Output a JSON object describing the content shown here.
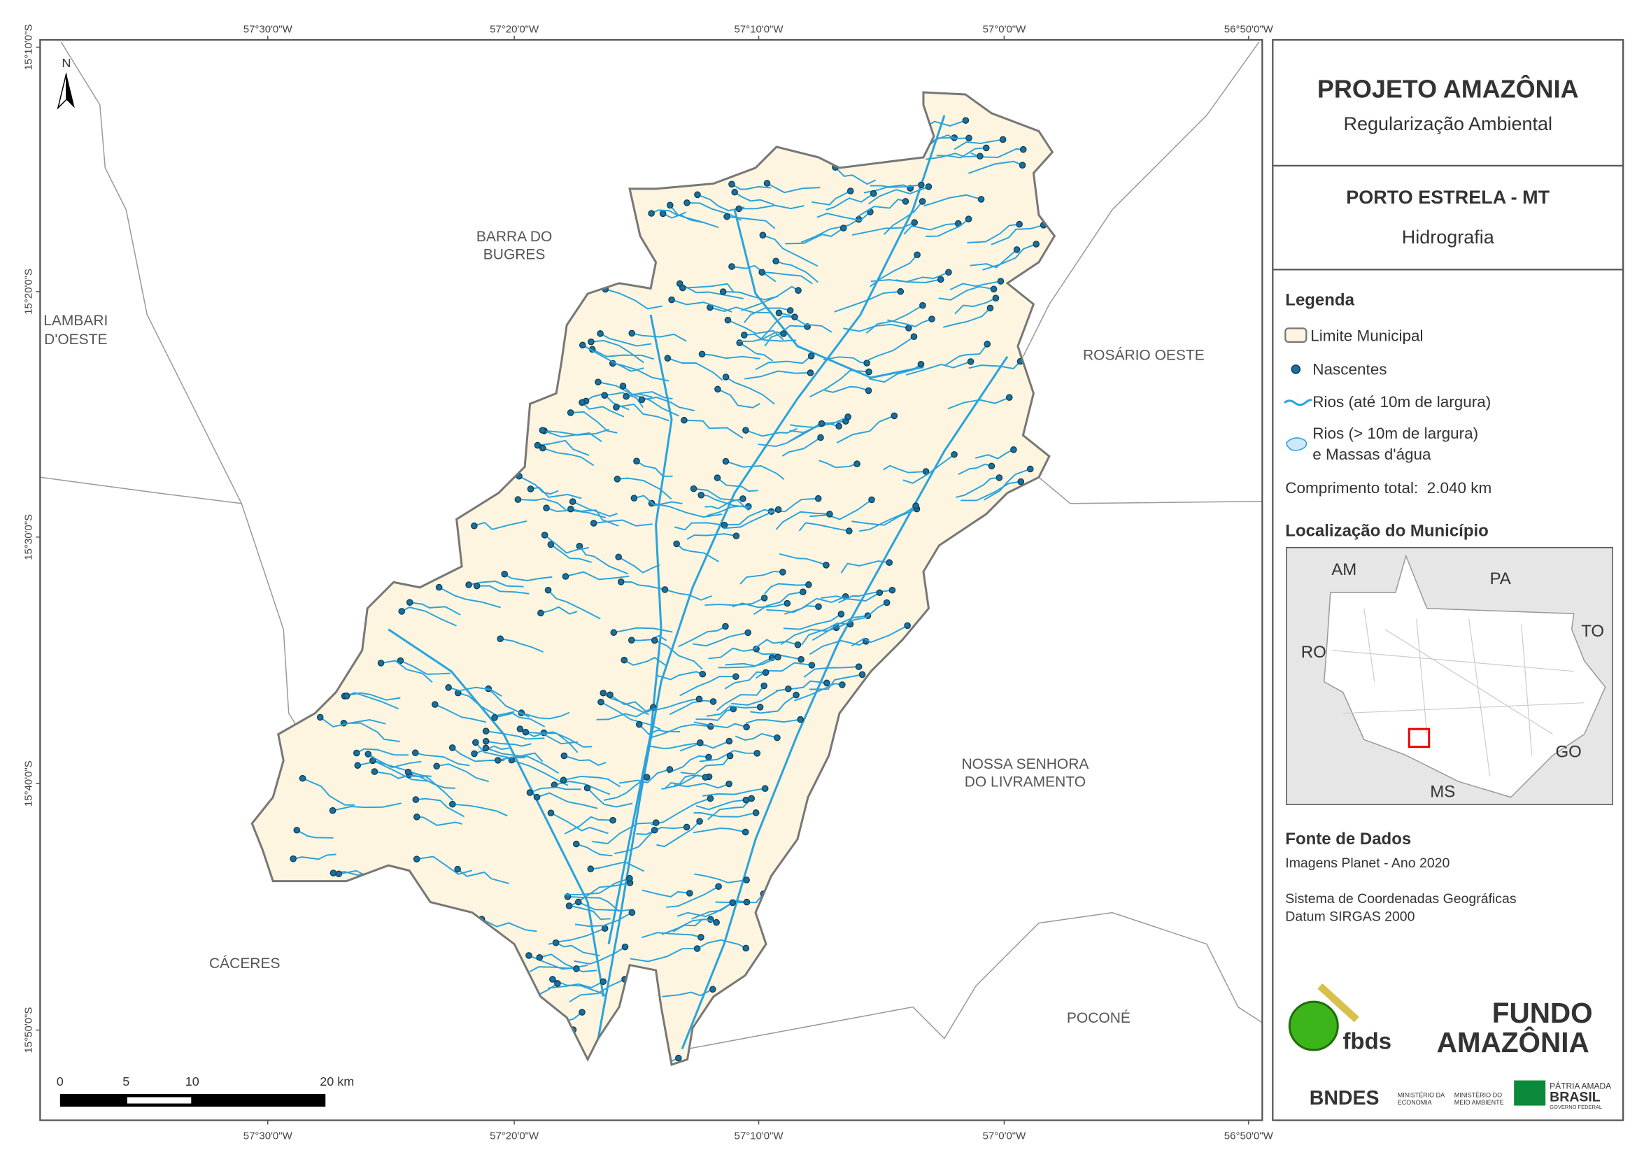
{
  "map_frame": {
    "top_labels": [
      "57°30'0\"W",
      "57°20'0\"W",
      "57°10'0\"W",
      "57°0'0\"W",
      "56°50'0\"W"
    ],
    "bottom_labels": [
      "57°30'0\"W",
      "57°20'0\"W",
      "57°10'0\"W",
      "57°0'0\"W",
      "56°50'0\"W"
    ],
    "left_labels": [
      "15°10'0\"S",
      "15°20'0\"S",
      "15°30'0\"S",
      "15°40'0\"S",
      "15°50'0\"S"
    ]
  },
  "places": [
    [
      "BARRA DO",
      "BUGRES"
    ],
    [
      "LAMBARI",
      "D'OESTE"
    ],
    [
      "ROSÁRIO OESTE"
    ],
    [
      "NOSSA SENHORA",
      "DO LIVRAMENTO"
    ],
    [
      "CÁCERES"
    ],
    [
      "POCONÉ"
    ]
  ],
  "north": "N",
  "scale_bar": [
    "0",
    "5",
    "10",
    "20 km"
  ],
  "header": {
    "title": "PROJETO AMAZÔNIA",
    "subtitle": "Regularização Ambiental"
  },
  "municipality": {
    "name": "PORTO ESTRELA - MT",
    "theme": "Hidrografia"
  },
  "legend": {
    "title": "Legenda",
    "items": [
      "Limite Municipal",
      "Nascentes",
      "Rios (até 10m de largura)",
      "Rios (> 10m de largura)",
      "e Massas d'água"
    ],
    "total": "Comprimento total:  2.040 km"
  },
  "location": {
    "title": "Localização do Município",
    "states": [
      "AM",
      "PA",
      "TO",
      "RO",
      "GO",
      "MS"
    ]
  },
  "sources": {
    "title": "Fonte de Dados",
    "lines": [
      "Imagens Planet - Ano 2020",
      "Sistema de Coordenadas Geográficas",
      "Datum SIRGAS 2000"
    ]
  },
  "logos": {
    "fbds": "fbds",
    "fundo": [
      "FUNDO",
      "AMAZÔNIA"
    ],
    "bndes": "BNDES",
    "min_economia": [
      "MINISTÉRIO DA",
      "ECONOMIA"
    ],
    "min_ambiente": [
      "MINISTÉRIO DO",
      "MEIO AMBIENTE"
    ],
    "brasil": [
      "PÁTRIA AMADA",
      "BRASIL",
      "GOVERNO FEDERAL"
    ]
  }
}
